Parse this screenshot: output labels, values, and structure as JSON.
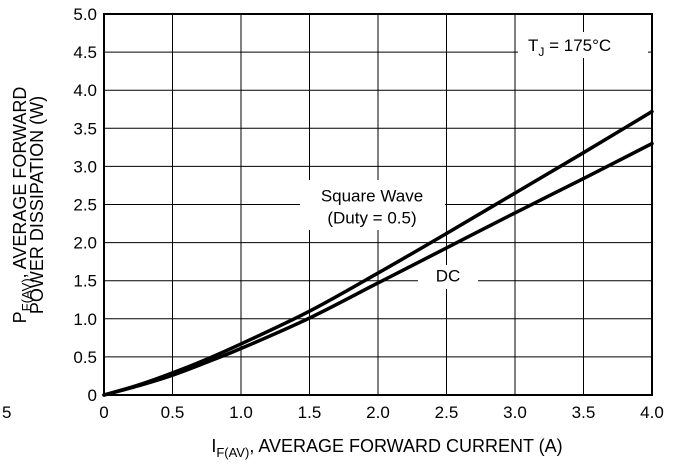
{
  "chart_data": {
    "type": "line",
    "title": "",
    "xlabel": {
      "prefix": "I",
      "subscript": "F(AV)",
      "suffix": ", AVERAGE FORWARD CURRENT (A)"
    },
    "ylabel": {
      "line1_prefix": "P",
      "line1_subscript": "F(AV)",
      "line1_suffix": ", AVERAGE FORWARD",
      "line2": "POWER DISSIPATION (W)"
    },
    "xlim": [
      0,
      4.0
    ],
    "ylim": [
      0,
      5.0
    ],
    "x_ticks": [
      "0",
      "0.5",
      "1.0",
      "1.5",
      "2.0",
      "2.5",
      "3.0",
      "3.5",
      "4.0"
    ],
    "y_ticks": [
      "0",
      "0.5",
      "1.0",
      "1.5",
      "2.0",
      "2.5",
      "3.0",
      "3.5",
      "4.0",
      "4.5",
      "5.0"
    ],
    "stray_tick_label": "5",
    "grid": true,
    "series": [
      {
        "name": "Square Wave",
        "x": [
          0,
          0.25,
          0.5,
          0.75,
          1.0,
          1.5,
          2.0,
          2.5,
          3.0,
          3.5,
          4.0
        ],
        "y": [
          0,
          0.13,
          0.29,
          0.47,
          0.67,
          1.1,
          1.6,
          2.12,
          2.65,
          3.18,
          3.72
        ]
      },
      {
        "name": "DC",
        "x": [
          0,
          0.25,
          0.5,
          0.75,
          1.0,
          1.5,
          2.0,
          2.5,
          3.0,
          3.5,
          4.0
        ],
        "y": [
          0,
          0.12,
          0.26,
          0.43,
          0.61,
          1.01,
          1.47,
          1.93,
          2.39,
          2.84,
          3.3
        ]
      }
    ],
    "annotations": {
      "square_wave_line1": "Square Wave",
      "square_wave_line2": "(Duty = 0.5)",
      "dc": "DC",
      "tj_prefix": "T",
      "tj_subscript": "J",
      "tj_suffix": " = 175°C"
    }
  }
}
